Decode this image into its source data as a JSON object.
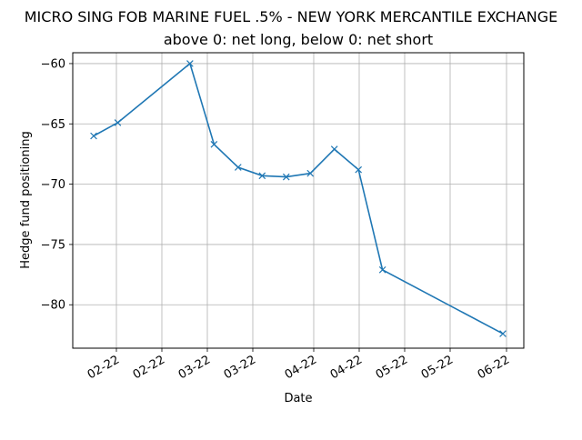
{
  "chart_data": {
    "type": "line",
    "title": "MICRO SING FOB MARINE FUEL .5% - NEW YORK MERCANTILE EXCHANGE",
    "subtitle": "above 0: net long, below 0: net short",
    "xlabel": "Date",
    "ylabel": "Hedge fund positioning",
    "grid": true,
    "marker": "x",
    "line_color": "#1f77b4",
    "x_tick_labels": [
      "02-22",
      "02-22",
      "03-22",
      "03-22",
      "04-22",
      "04-22",
      "05-22",
      "05-22",
      "06-22"
    ],
    "y_ticks": [
      -80,
      -75,
      -70,
      -65,
      -60
    ],
    "y_tick_labels": [
      "−80",
      "−75",
      "−70",
      "−65",
      "−60"
    ],
    "ylim": [
      -83.6,
      -59.1
    ],
    "x": [
      "2022-02-01",
      "2022-02-08",
      "2022-03-01",
      "2022-03-08",
      "2022-03-15",
      "2022-03-22",
      "2022-03-29",
      "2022-04-05",
      "2022-04-12",
      "2022-04-19",
      "2022-04-26",
      "2022-05-31"
    ],
    "values": [
      -66.0,
      -64.9,
      -60.0,
      -66.7,
      -68.6,
      -69.3,
      -69.4,
      -69.1,
      -67.1,
      -68.8,
      -77.1,
      -82.4
    ]
  }
}
